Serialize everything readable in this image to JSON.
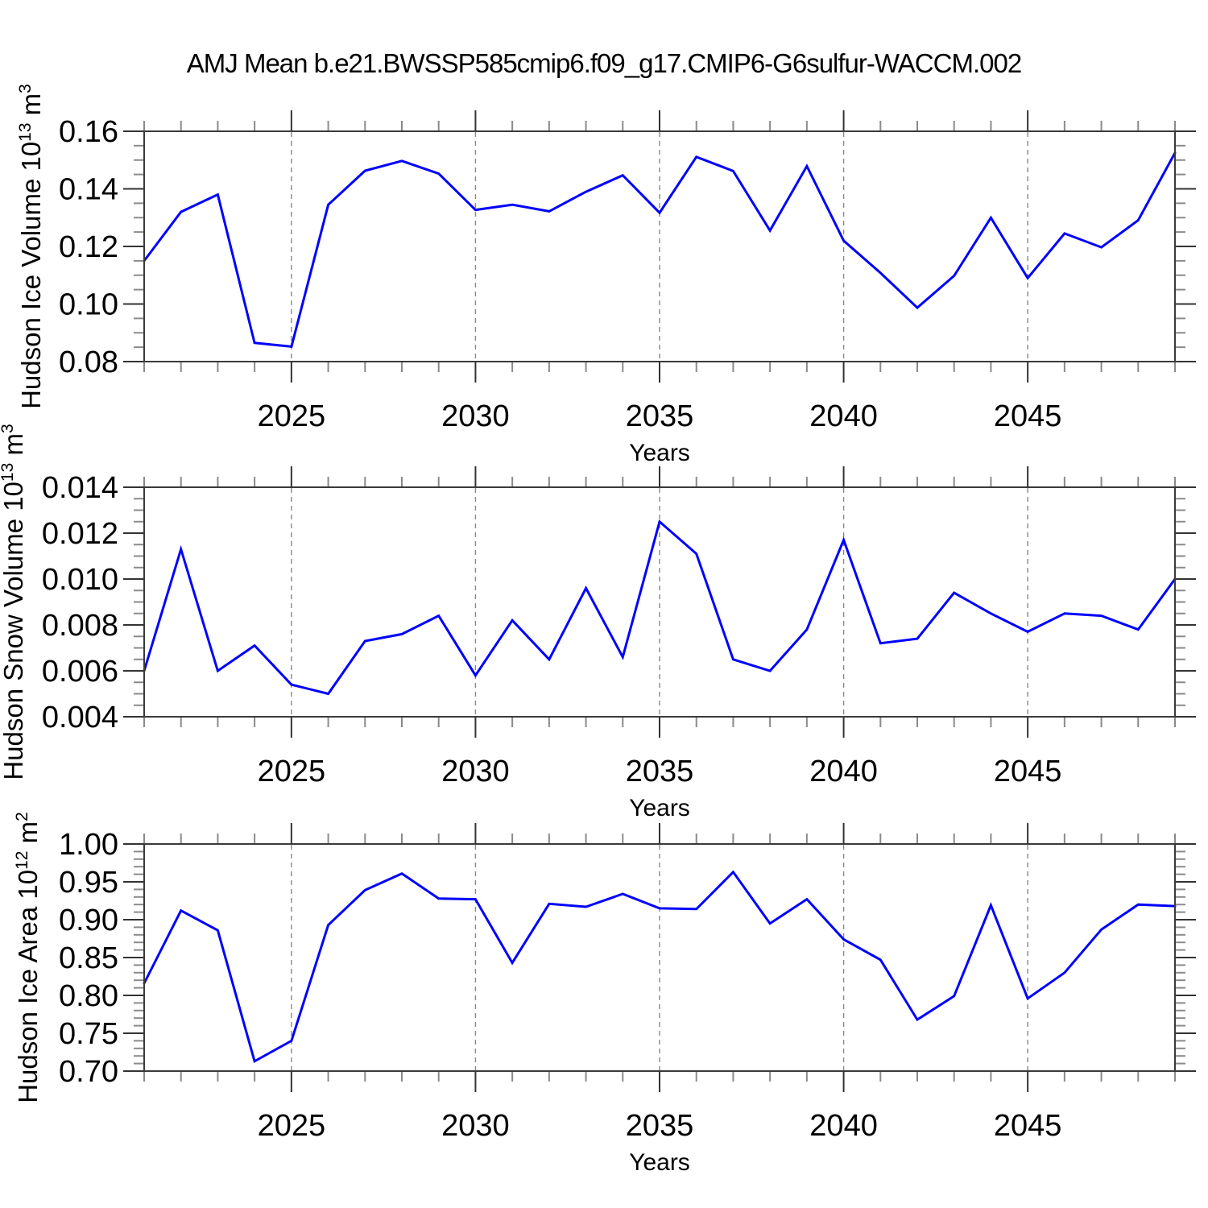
{
  "title": "AMJ Mean b.e21.BWSSP585cmip6.f09_g17.CMIP6-G6sulfur-WACCM.002",
  "colors": {
    "line": "#0000FF",
    "grid": "#888888",
    "spine": "#3a3a3a",
    "major_tick": "#333333",
    "minor_tick": "#8a8a8a",
    "text": "#000000",
    "background": "#FFFFFF"
  },
  "x_axis": {
    "label": "Years",
    "range": [
      2021,
      2049
    ],
    "major_ticks": [
      2025,
      2030,
      2035,
      2040,
      2045
    ],
    "minor_step": 1,
    "gridlines": "dashed-vertical-at-major-ticks"
  },
  "chart_data": [
    {
      "id": "ice-volume",
      "type": "line",
      "title": "Hudson Ice Volume",
      "ylabel": "Hudson Ice Volume 10^13 m^3",
      "ylabel_parts": [
        {
          "t": "Hudson Ice Volume 10",
          "sup": false
        },
        {
          "t": "13",
          "sup": true
        },
        {
          "t": " m",
          "sup": false
        },
        {
          "t": "3",
          "sup": true
        }
      ],
      "xlabel": "Years",
      "x": [
        2021,
        2022,
        2023,
        2024,
        2025,
        2026,
        2027,
        2028,
        2029,
        2030,
        2031,
        2032,
        2033,
        2034,
        2035,
        2036,
        2037,
        2038,
        2039,
        2040,
        2041,
        2042,
        2043,
        2044,
        2045,
        2046,
        2047,
        2048,
        2049
      ],
      "values": [
        0.115,
        0.132,
        0.138,
        0.0865,
        0.0852,
        0.1345,
        0.1463,
        0.1497,
        0.1453,
        0.1327,
        0.1345,
        0.1322,
        0.139,
        0.1447,
        0.1317,
        0.1511,
        0.1462,
        0.1255,
        0.1479,
        0.122,
        0.1108,
        0.0987,
        0.1098,
        0.13,
        0.109,
        0.1245,
        0.1197,
        0.1291,
        0.1525
      ],
      "ylim": [
        0.08,
        0.16
      ],
      "yticks": [
        {
          "v": 0.08,
          "label": "0.08"
        },
        {
          "v": 0.1,
          "label": "0.10"
        },
        {
          "v": 0.12,
          "label": "0.12"
        },
        {
          "v": 0.14,
          "label": "0.14"
        },
        {
          "v": 0.16,
          "label": "0.16"
        }
      ],
      "yminor_step": 0.005,
      "legend": "none",
      "grid_on": true
    },
    {
      "id": "snow-volume",
      "type": "line",
      "title": "Hudson Snow Volume",
      "ylabel": "Hudson Snow Volume 10^13 m^3",
      "ylabel_parts": [
        {
          "t": "Hudson Snow Volume 10",
          "sup": false
        },
        {
          "t": "13",
          "sup": true
        },
        {
          "t": " m",
          "sup": false
        },
        {
          "t": "3",
          "sup": true
        }
      ],
      "xlabel": "Years",
      "x": [
        2021,
        2022,
        2023,
        2024,
        2025,
        2026,
        2027,
        2028,
        2029,
        2030,
        2031,
        2032,
        2033,
        2034,
        2035,
        2036,
        2037,
        2038,
        2039,
        2040,
        2041,
        2042,
        2043,
        2044,
        2045,
        2046,
        2047,
        2048,
        2049
      ],
      "values": [
        0.006,
        0.0113,
        0.006,
        0.0071,
        0.0054,
        0.005,
        0.0073,
        0.0076,
        0.0084,
        0.0058,
        0.0082,
        0.0065,
        0.0096,
        0.0066,
        0.0125,
        0.0111,
        0.0065,
        0.006,
        0.0078,
        0.0117,
        0.0072,
        0.0074,
        0.0094,
        0.0085,
        0.0077,
        0.0085,
        0.0084,
        0.0078,
        0.01
      ],
      "ylim": [
        0.004,
        0.014
      ],
      "yticks": [
        {
          "v": 0.004,
          "label": "0.004"
        },
        {
          "v": 0.006,
          "label": "0.006"
        },
        {
          "v": 0.008,
          "label": "0.008"
        },
        {
          "v": 0.01,
          "label": "0.010"
        },
        {
          "v": 0.012,
          "label": "0.012"
        },
        {
          "v": 0.014,
          "label": "0.014"
        }
      ],
      "yminor_step": 0.0005,
      "legend": "none",
      "grid_on": true
    },
    {
      "id": "ice-area",
      "type": "line",
      "title": "Hudson Ice Area",
      "ylabel": "Hudson Ice Area 10^12 m^2",
      "ylabel_parts": [
        {
          "t": "Hudson Ice Area 10",
          "sup": false
        },
        {
          "t": "12",
          "sup": true
        },
        {
          "t": " m",
          "sup": false
        },
        {
          "t": "2",
          "sup": true
        }
      ],
      "xlabel": "Years",
      "x": [
        2021,
        2022,
        2023,
        2024,
        2025,
        2026,
        2027,
        2028,
        2029,
        2030,
        2031,
        2032,
        2033,
        2034,
        2035,
        2036,
        2037,
        2038,
        2039,
        2040,
        2041,
        2042,
        2043,
        2044,
        2045,
        2046,
        2047,
        2048,
        2049
      ],
      "values": [
        0.816,
        0.912,
        0.886,
        0.713,
        0.74,
        0.893,
        0.939,
        0.961,
        0.928,
        0.927,
        0.843,
        0.921,
        0.917,
        0.934,
        0.915,
        0.914,
        0.963,
        0.895,
        0.927,
        0.874,
        0.847,
        0.768,
        0.799,
        0.919,
        0.796,
        0.83,
        0.887,
        0.92,
        0.918
      ],
      "ylim": [
        0.7,
        1.0
      ],
      "yticks": [
        {
          "v": 0.7,
          "label": "0.70"
        },
        {
          "v": 0.75,
          "label": "0.75"
        },
        {
          "v": 0.8,
          "label": "0.80"
        },
        {
          "v": 0.85,
          "label": "0.85"
        },
        {
          "v": 0.9,
          "label": "0.90"
        },
        {
          "v": 0.95,
          "label": "0.95"
        },
        {
          "v": 1.0,
          "label": "1.00"
        }
      ],
      "yminor_step": 0.01,
      "legend": "none",
      "grid_on": true
    }
  ]
}
